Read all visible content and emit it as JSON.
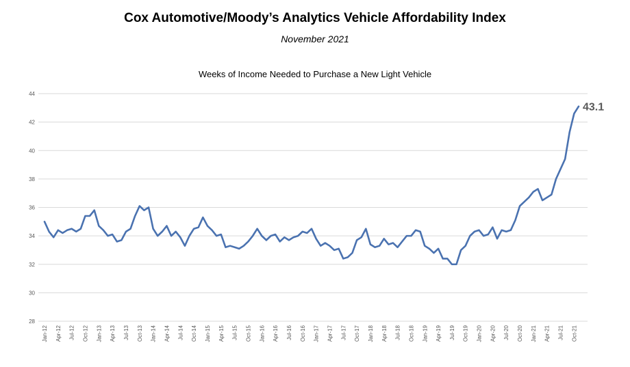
{
  "header": {
    "title": "Cox Automotive/Moody’s Analytics Vehicle Affordability Index",
    "subtitle": "November 2021"
  },
  "chart_data": {
    "type": "line",
    "title": "Weeks of Income Needed to Purchase a New Light Vehicle",
    "xlabel": "",
    "ylabel": "",
    "ylim": [
      28,
      44
    ],
    "yticks": [
      "28",
      "30",
      "32",
      "34",
      "36",
      "38",
      "40",
      "42",
      "44"
    ],
    "grid": true,
    "legend": "none",
    "line_color": "#4a72b0",
    "x_tick_labels": [
      "Jan-12",
      "Apr-12",
      "Jul-12",
      "Oct-12",
      "Jan-13",
      "Apr-13",
      "Jul-13",
      "Oct-13",
      "Jan-14",
      "Apr-14",
      "Jul-14",
      "Oct-14",
      "Jan-15",
      "Apr-15",
      "Jul-15",
      "Oct-15",
      "Jan-16",
      "Apr-16",
      "Jul-16",
      "Oct-16",
      "Jan-17",
      "Apr-17",
      "Jul-17",
      "Oct-17",
      "Jan-18",
      "Apr-18",
      "Jul-18",
      "Oct-18",
      "Jan-19",
      "Apr-19",
      "Jul-19",
      "Oct-19",
      "Jan-20",
      "Apr-20",
      "Jul-20",
      "Oct-20",
      "Jan-21",
      "Apr-21",
      "Jul-21",
      "Oct-21"
    ],
    "x_start": "Jan-12",
    "x_end": "Nov-21",
    "series": [
      {
        "values": [
          35.0,
          34.3,
          33.9,
          34.4,
          34.2,
          34.4,
          34.5,
          34.3,
          34.5,
          35.4,
          35.4,
          35.8,
          34.7,
          34.4,
          34.0,
          34.1,
          33.6,
          33.7,
          34.3,
          34.5,
          35.4,
          36.1,
          35.8,
          36.0,
          34.5,
          34.0,
          34.3,
          34.7,
          34.0,
          34.3,
          33.9,
          33.3,
          34.0,
          34.5,
          34.6,
          35.3,
          34.7,
          34.4,
          34.0,
          34.1,
          33.2,
          33.3,
          33.2,
          33.1,
          33.3,
          33.6,
          34.0,
          34.5,
          34.0,
          33.7,
          34.0,
          34.1,
          33.6,
          33.9,
          33.7,
          33.9,
          34.0,
          34.3,
          34.2,
          34.5,
          33.8,
          33.3,
          33.5,
          33.3,
          33.0,
          33.1,
          32.4,
          32.5,
          32.8,
          33.7,
          33.9,
          34.5,
          33.4,
          33.2,
          33.3,
          33.8,
          33.4,
          33.5,
          33.2,
          33.6,
          34.0,
          34.0,
          34.4,
          34.3,
          33.3,
          33.1,
          32.8,
          33.1,
          32.4,
          32.4,
          32.0,
          32.0,
          33.0,
          33.3,
          34.0,
          34.3,
          34.4,
          34.0,
          34.1,
          34.6,
          33.8,
          34.4,
          34.3,
          34.4,
          35.1,
          36.1,
          36.4,
          36.7,
          37.1,
          37.3,
          36.5,
          36.7,
          36.9,
          38.0,
          38.7,
          39.4,
          41.3,
          42.6,
          43.1
        ]
      }
    ],
    "end_label": "43.1"
  }
}
